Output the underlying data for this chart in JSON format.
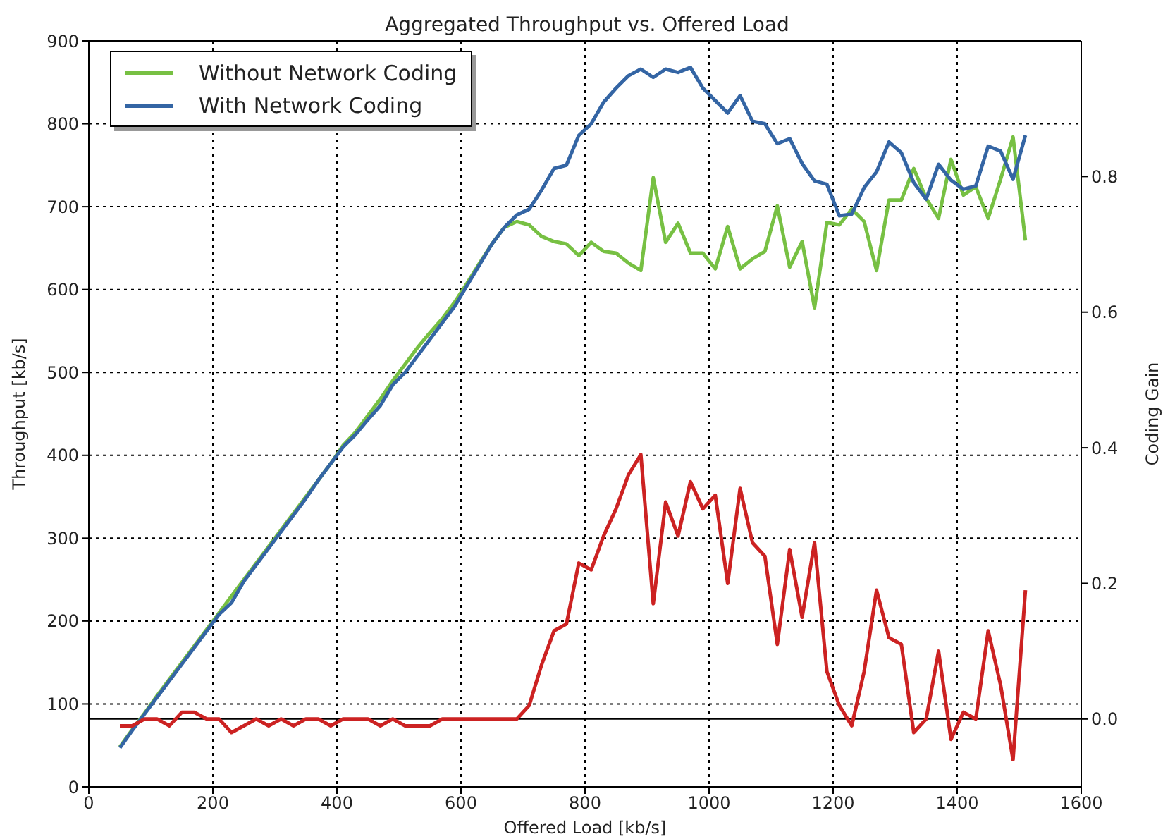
{
  "chart_data": {
    "type": "line",
    "title": "Aggregated Throughput vs. Offered Load",
    "xlabel": "Offered Load [kb/s]",
    "ylabel": "Throughput [kb/s]",
    "y2label": "Coding Gain",
    "x": [
      50,
      70,
      90,
      110,
      130,
      150,
      170,
      190,
      210,
      230,
      250,
      270,
      290,
      310,
      330,
      350,
      370,
      390,
      410,
      430,
      450,
      470,
      490,
      510,
      530,
      550,
      570,
      590,
      610,
      630,
      650,
      670,
      690,
      710,
      730,
      750,
      770,
      790,
      810,
      830,
      850,
      870,
      890,
      910,
      930,
      950,
      970,
      990,
      1010,
      1030,
      1050,
      1070,
      1090,
      1110,
      1130,
      1150,
      1170,
      1190,
      1210,
      1230,
      1250,
      1270,
      1290,
      1310,
      1330,
      1350,
      1370,
      1390,
      1410,
      1430,
      1450,
      1470,
      1490,
      1510
    ],
    "series": [
      {
        "name": "Without Network Coding",
        "color": "#77c043",
        "values": [
          48,
          69,
          89,
          110,
          130,
          150,
          170,
          190,
          210,
          230,
          250,
          270,
          290,
          310,
          330,
          350,
          370,
          390,
          412,
          428,
          448,
          468,
          490,
          510,
          530,
          548,
          565,
          585,
          608,
          632,
          655,
          675,
          682,
          678,
          664,
          658,
          655,
          641,
          657,
          646,
          644,
          632,
          623,
          735,
          657,
          680,
          644,
          644,
          625,
          676,
          625,
          637,
          646,
          701,
          627,
          658,
          578,
          681,
          678,
          697,
          682,
          623,
          708,
          708,
          746,
          710,
          686,
          757,
          714,
          724,
          686,
          733,
          784,
          659
        ]
      },
      {
        "name": "With Network Coding",
        "color": "#3465a4",
        "values": [
          47,
          68,
          88,
          108,
          128,
          148,
          168,
          188,
          208,
          222,
          248,
          268,
          288,
          308,
          328,
          348,
          370,
          390,
          410,
          425,
          443,
          460,
          485,
          500,
          520,
          540,
          560,
          580,
          605,
          630,
          655,
          675,
          690,
          697,
          720,
          746,
          750,
          786,
          800,
          826,
          843,
          858,
          866,
          856,
          866,
          862,
          868,
          843,
          828,
          813,
          834,
          803,
          800,
          776,
          782,
          752,
          731,
          727,
          689,
          691,
          723,
          742,
          778,
          765,
          729,
          709,
          751,
          732,
          721,
          725,
          773,
          767,
          733,
          786
        ]
      },
      {
        "color": "#cc2222",
        "axis": "y2",
        "values": [
          -0.01,
          -0.01,
          0.0,
          0.0,
          -0.01,
          0.01,
          0.01,
          0.0,
          0.0,
          -0.02,
          -0.01,
          0.0,
          -0.01,
          0.0,
          -0.01,
          0.0,
          0.0,
          -0.01,
          0.0,
          0.0,
          0.0,
          -0.01,
          0.0,
          -0.01,
          -0.01,
          -0.01,
          0.0,
          0.0,
          0.0,
          0.0,
          0.0,
          0.0,
          0.0,
          0.02,
          0.08,
          0.13,
          0.14,
          0.23,
          0.22,
          0.27,
          0.31,
          0.36,
          0.39,
          0.17,
          0.32,
          0.27,
          0.35,
          0.31,
          0.33,
          0.2,
          0.34,
          0.26,
          0.24,
          0.11,
          0.25,
          0.15,
          0.26,
          0.07,
          0.02,
          -0.01,
          0.07,
          0.19,
          0.12,
          0.11,
          -0.02,
          0.0,
          0.1,
          -0.03,
          0.01,
          0.0,
          0.13,
          0.05,
          -0.06,
          0.19
        ]
      }
    ],
    "xlim": [
      0,
      1600
    ],
    "xticks": [
      0,
      200,
      400,
      600,
      800,
      1000,
      1200,
      1400,
      1600
    ],
    "ylim": [
      0,
      900
    ],
    "yticks": [
      0,
      100,
      200,
      300,
      400,
      500,
      600,
      700,
      800,
      900
    ],
    "y2lim": [
      -0.1,
      1.0
    ],
    "y2ticks": [
      {
        "value": 0,
        "label": "0.0"
      },
      0.2,
      0.4,
      0.6,
      0.8
    ],
    "ref_lines": [
      {
        "axis": "y2",
        "value": 0,
        "color": "#000000"
      }
    ],
    "grid": true,
    "legend": "top left",
    "line_style": "solid",
    "marker": "none"
  }
}
